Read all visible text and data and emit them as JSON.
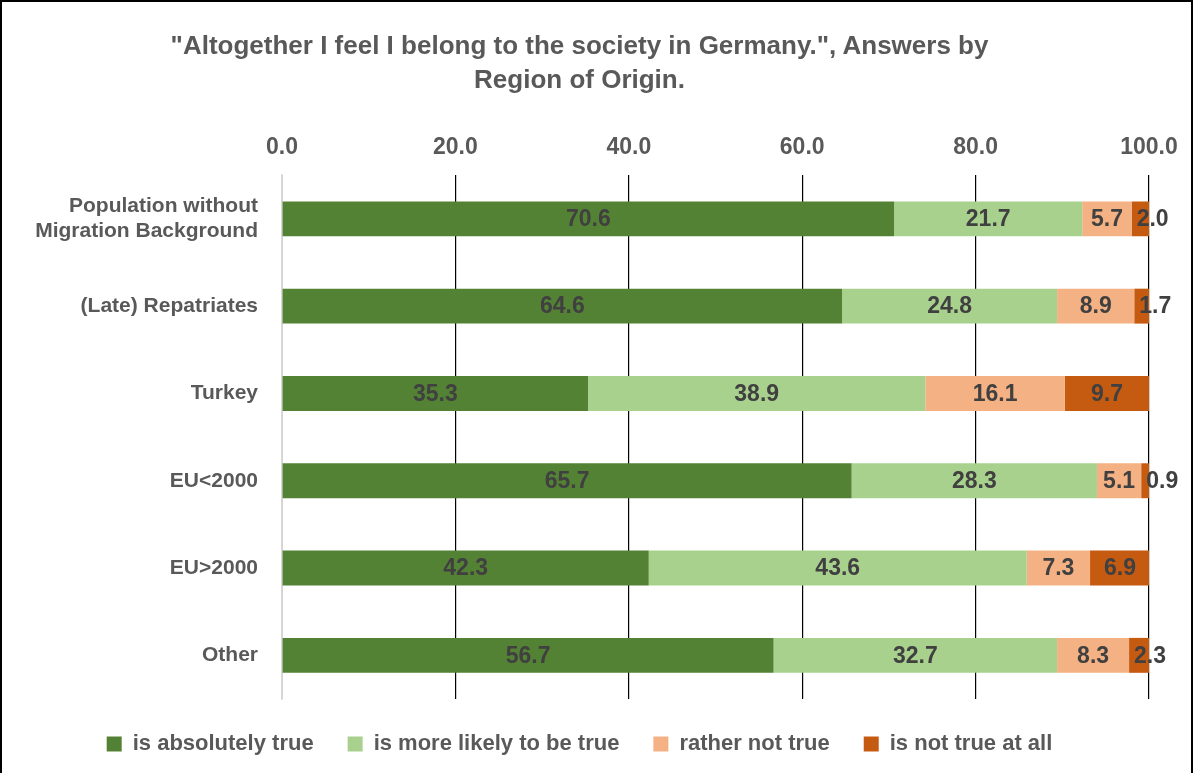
{
  "chart_data": {
    "type": "bar",
    "orientation": "horizontal",
    "stacked": true,
    "title": "\"Altogether I feel I belong to the society in Germany.\", Answers by Region of Origin.",
    "categories": [
      "Population without Migration Background",
      "(Late) Repatriates",
      "Turkey",
      "EU<2000",
      "EU>2000",
      "Other"
    ],
    "series": [
      {
        "name": "is absolutely true",
        "color": "#548235",
        "values": [
          70.6,
          64.6,
          35.3,
          65.7,
          42.3,
          56.7
        ],
        "value_labels": [
          "70.6",
          "64.6",
          "35.3",
          "65.7",
          "42.3",
          "56.7"
        ]
      },
      {
        "name": "is more likely to be true",
        "color": "#a9d18e",
        "values": [
          21.7,
          24.8,
          38.9,
          28.3,
          43.6,
          32.7
        ],
        "value_labels": [
          "21.7",
          "24.8",
          "38.9",
          "28.3",
          "43.6",
          "32.7"
        ]
      },
      {
        "name": "rather not true",
        "color": "#f4b183",
        "values": [
          5.7,
          8.9,
          16.1,
          5.1,
          7.3,
          8.3
        ],
        "value_labels": [
          "5.7",
          "8.9",
          "16.1",
          "5.1",
          "7.3",
          "8.3"
        ]
      },
      {
        "name": "is not true at all",
        "color": "#c55a11",
        "values": [
          2.0,
          1.7,
          9.7,
          0.9,
          6.9,
          2.3
        ],
        "value_labels": [
          "2.0",
          "1.7",
          "9.7",
          "0.9",
          "6.9",
          "2.3"
        ]
      }
    ],
    "xlim": [
      0,
      100
    ],
    "xticks": [
      {
        "value": 0,
        "label": "0.0"
      },
      {
        "value": 20,
        "label": "20.0"
      },
      {
        "value": 40,
        "label": "40.0"
      },
      {
        "value": 60,
        "label": "60.0"
      },
      {
        "value": 80,
        "label": "80.0"
      },
      {
        "value": 100,
        "label": "100.0"
      }
    ],
    "grid": "x",
    "legend": "bottom"
  }
}
